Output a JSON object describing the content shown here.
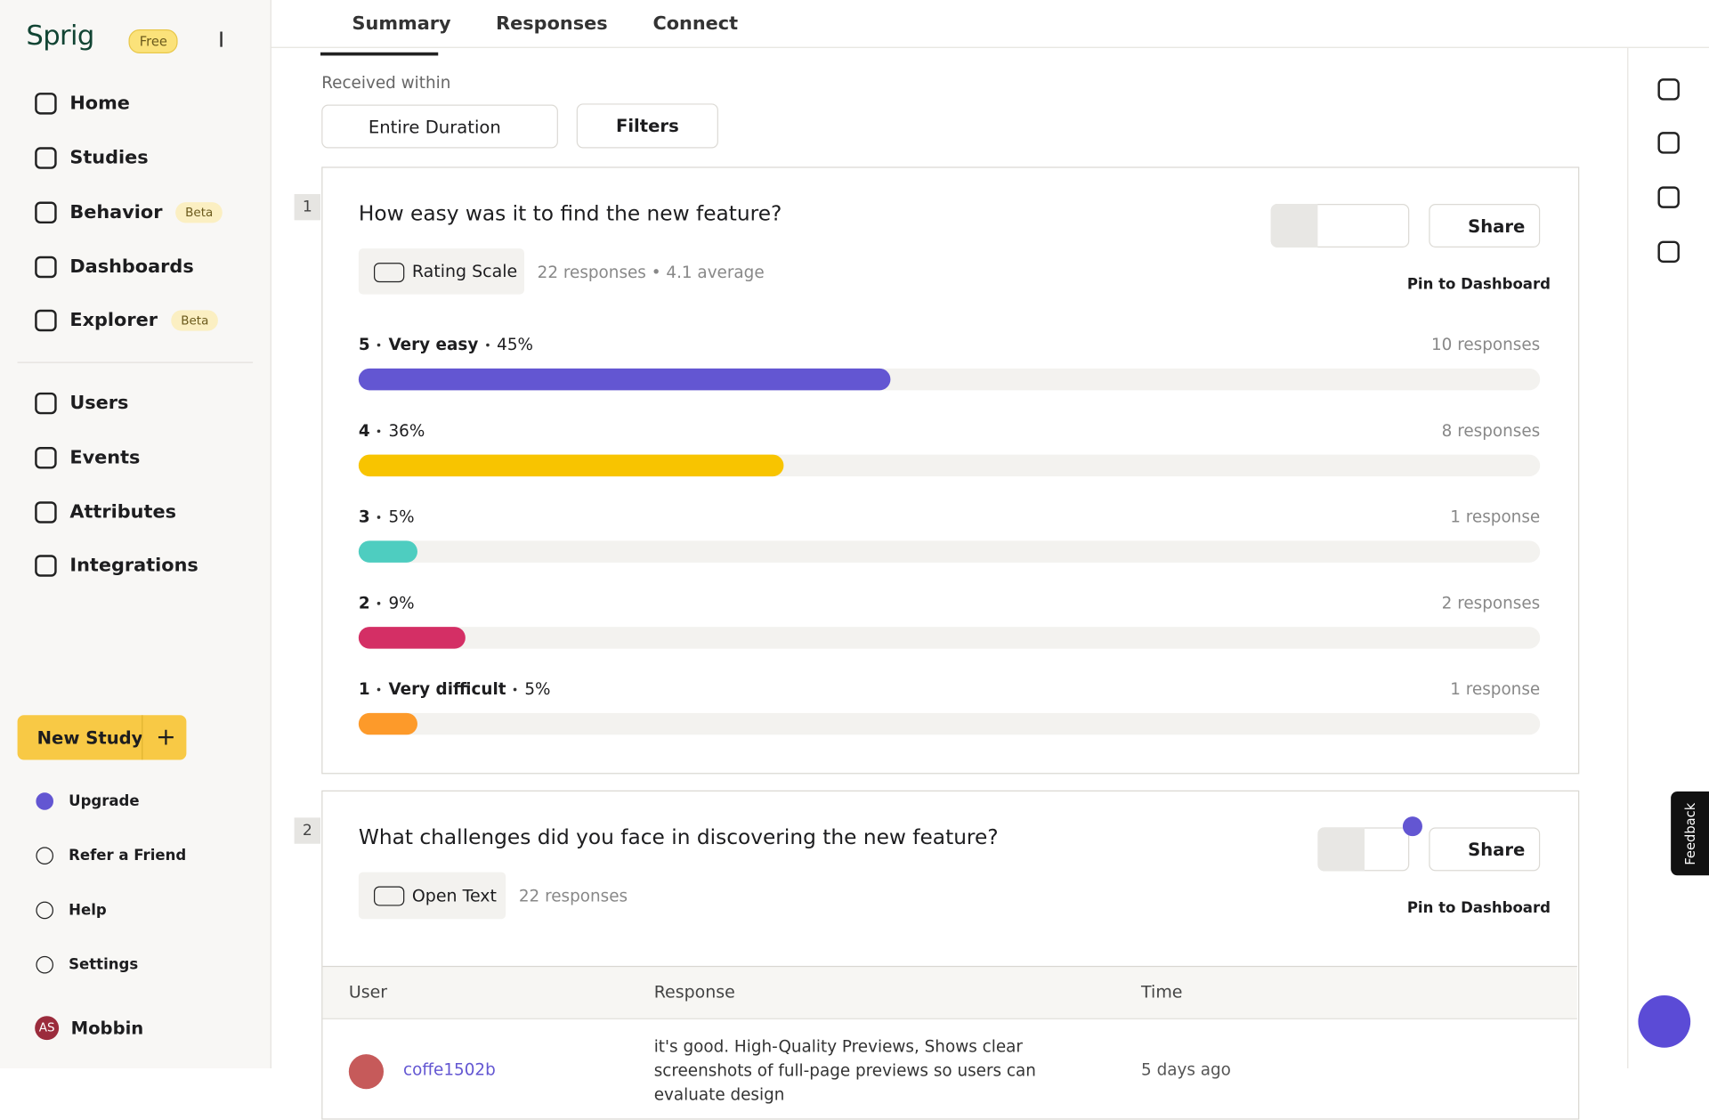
{
  "sidebar": {
    "logo": "Sprig",
    "plan": "Free",
    "nav": [
      {
        "label": "Home"
      },
      {
        "label": "Studies"
      },
      {
        "label": "Behavior",
        "badge": "Beta"
      },
      {
        "label": "Dashboards"
      },
      {
        "label": "Explorer",
        "badge": "Beta"
      }
    ],
    "nav2": [
      {
        "label": "Users"
      },
      {
        "label": "Events"
      },
      {
        "label": "Attributes"
      },
      {
        "label": "Integrations"
      }
    ],
    "new_study": "New Study",
    "bottom": [
      {
        "label": "Upgrade"
      },
      {
        "label": "Refer a Friend"
      },
      {
        "label": "Help"
      },
      {
        "label": "Settings"
      }
    ],
    "user": {
      "initials": "AS",
      "name": "Mobbin"
    }
  },
  "tabs": [
    "Summary",
    "Responses",
    "Connect"
  ],
  "filters": {
    "label": "Received within",
    "duration": "Entire Duration",
    "filters": "Filters"
  },
  "questions": [
    {
      "number": "1",
      "title": "How easy was it to find the new feature?",
      "kind": "Rating Scale",
      "meta": "22 responses • 4.1 average",
      "share": "Share",
      "pin": "Pin to Dashboard",
      "options": [
        {
          "score": "5",
          "label": "Very easy",
          "percent": 45,
          "percent_label": "45%",
          "responses": "10 responses",
          "color": "#6356d2"
        },
        {
          "score": "4",
          "label": null,
          "percent": 36,
          "percent_label": "36%",
          "responses": "8 responses",
          "color": "#f8c400"
        },
        {
          "score": "3",
          "label": null,
          "percent": 5,
          "percent_label": "5%",
          "responses": "1 response",
          "color": "#4ecdc0"
        },
        {
          "score": "2",
          "label": null,
          "percent": 9,
          "percent_label": "9%",
          "responses": "2 responses",
          "color": "#d42f65"
        },
        {
          "score": "1",
          "label": "Very difficult",
          "percent": 5,
          "percent_label": "5%",
          "responses": "1 response",
          "color": "#fd9a2a"
        }
      ]
    },
    {
      "number": "2",
      "title": "What challenges did you face in discovering the new feature?",
      "kind": "Open Text",
      "meta": "22 responses",
      "share": "Share",
      "pin": "Pin to Dashboard",
      "table": {
        "headers": [
          "User",
          "Response",
          "Time"
        ],
        "rows": [
          [
            "coffe1502b",
            "it's good. High-Quality Previews, Shows clear screenshots of full-page previews so users can evaluate design",
            "5 days ago"
          ]
        ]
      }
    }
  ],
  "feedback": "Feedback"
}
